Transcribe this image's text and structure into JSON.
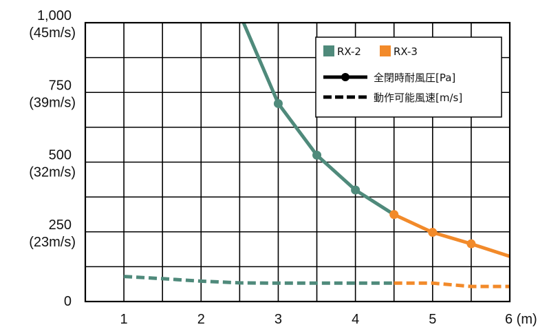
{
  "chart_data": {
    "type": "line",
    "title": "",
    "xlabel": "",
    "ylabel": "",
    "x_ticks": [
      "1",
      "2",
      "3",
      "4",
      "5",
      "6 (m)"
    ],
    "y_ticks": [
      {
        "value": 0,
        "label": "0",
        "sublabel": ""
      },
      {
        "value": 250,
        "label": "250",
        "sublabel": "(23m/s)"
      },
      {
        "value": 500,
        "label": "500",
        "sublabel": "(32m/s)"
      },
      {
        "value": 750,
        "label": "750",
        "sublabel": "(39m/s)"
      },
      {
        "value": 1000,
        "label": "1,000",
        "sublabel": "(45m/s)"
      }
    ],
    "xlim": [
      0.5,
      6
    ],
    "ylim": [
      0,
      1000
    ],
    "grid": true,
    "legend": {
      "placement": "top-right",
      "products": [
        {
          "name": "RX-2",
          "color": "#4f8a7b"
        },
        {
          "name": "RX-3",
          "color": "#f28a2a"
        }
      ],
      "styles": [
        {
          "style": "solid",
          "label": "全閉時耐風圧[Pa]"
        },
        {
          "style": "dashed",
          "label": "動作可能風速[m/s]"
        }
      ]
    },
    "series": [
      {
        "product": "RX-2",
        "style": "solid",
        "color": "#4f8a7b",
        "markers": true,
        "points": [
          [
            2.55,
            1000
          ],
          [
            3.0,
            710
          ],
          [
            3.5,
            525
          ],
          [
            4.0,
            400
          ],
          [
            4.5,
            312
          ]
        ]
      },
      {
        "product": "RX-3",
        "style": "solid",
        "color": "#f28a2a",
        "markers": true,
        "points": [
          [
            4.5,
            312
          ],
          [
            5.0,
            248
          ],
          [
            5.5,
            207
          ],
          [
            6.0,
            162
          ]
        ]
      },
      {
        "product": "RX-2",
        "style": "dashed",
        "color": "#4f8a7b",
        "markers": false,
        "points": [
          [
            1.0,
            90
          ],
          [
            1.5,
            82
          ],
          [
            2.0,
            73
          ],
          [
            2.5,
            67
          ],
          [
            3.0,
            66
          ],
          [
            3.5,
            66
          ],
          [
            4.0,
            66
          ],
          [
            4.5,
            66
          ]
        ]
      },
      {
        "product": "RX-3",
        "style": "dashed",
        "color": "#f28a2a",
        "markers": false,
        "points": [
          [
            4.5,
            66
          ],
          [
            5.0,
            66
          ],
          [
            5.5,
            54
          ],
          [
            6.0,
            54
          ]
        ]
      }
    ],
    "markers_at": [
      {
        "series": 0,
        "x": 3.0
      },
      {
        "series": 0,
        "x": 3.5
      },
      {
        "series": 0,
        "x": 4.0
      },
      {
        "series": 1,
        "x": 4.5
      },
      {
        "series": 1,
        "x": 5.0
      },
      {
        "series": 1,
        "x": 5.5
      }
    ]
  }
}
